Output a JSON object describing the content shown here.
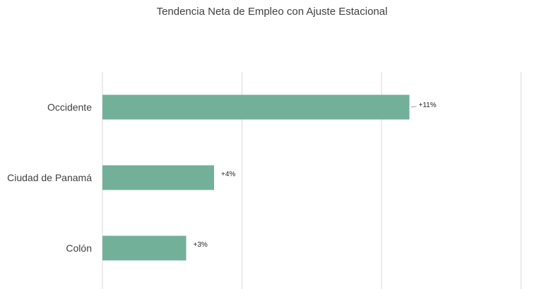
{
  "chart_data": {
    "type": "bar",
    "orientation": "horizontal",
    "title": "Tendencia Neta de Empleo con Ajuste Estacional",
    "xlabel": "",
    "ylabel": "",
    "categories": [
      "Occidente",
      "Ciudad de Panamá",
      "Colón"
    ],
    "values": [
      11,
      4,
      3
    ],
    "data_labels": [
      "+11%",
      "+4%",
      "+3%"
    ],
    "xlim": [
      0,
      15
    ],
    "grid": true,
    "legend": "none",
    "bar_color": "#72b09a",
    "gridline_color": "#d9d9d9",
    "label_color": "#404040"
  }
}
